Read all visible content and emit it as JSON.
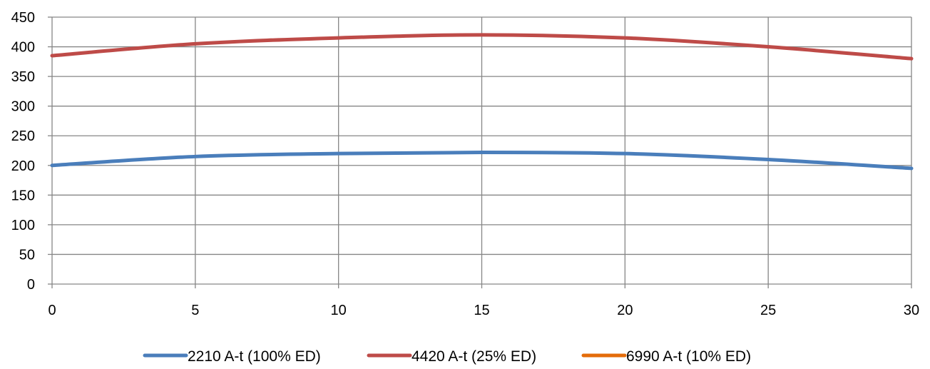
{
  "chart_data": {
    "type": "line",
    "title": "",
    "xlabel": "",
    "ylabel": "",
    "xlim": [
      0,
      30
    ],
    "ylim": [
      0,
      450
    ],
    "x_ticks": [
      0,
      5,
      10,
      15,
      20,
      25,
      30
    ],
    "y_ticks": [
      0,
      50,
      100,
      150,
      200,
      250,
      300,
      350,
      400,
      450
    ],
    "x_tick_labels": [
      "0",
      "5",
      "10",
      "15",
      "20",
      "25",
      "30"
    ],
    "y_tick_labels": [
      "0",
      "50",
      "100",
      "150",
      "200",
      "250",
      "300",
      "350",
      "400",
      "450"
    ],
    "grid": true,
    "legend_position": "bottom",
    "series": [
      {
        "name": "2210 A-t (100% ED)",
        "color": "#4a7ebb",
        "x": [
          0,
          5,
          10,
          15,
          20,
          25,
          30
        ],
        "y": [
          200,
          215,
          220,
          222,
          220,
          210,
          195
        ]
      },
      {
        "name": "4420 A-t (25% ED)",
        "color": "#be4b48",
        "x": [
          0,
          5,
          10,
          15,
          20,
          25,
          30
        ],
        "y": [
          385,
          405,
          415,
          420,
          415,
          400,
          380
        ]
      },
      {
        "name": "6990 A-t (10% ED)",
        "color": "#e46c0a",
        "x": [],
        "y": []
      }
    ]
  }
}
